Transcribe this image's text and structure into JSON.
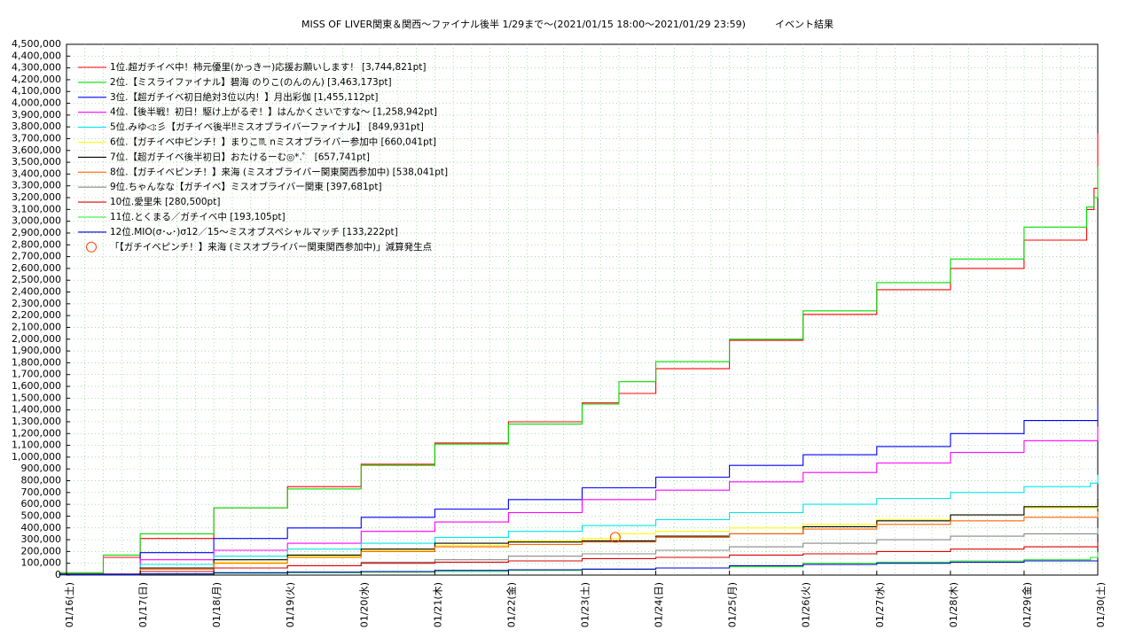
{
  "chart_data": {
    "type": "line",
    "title": "MISS OF LIVER関東＆関西〜ファイナル後半 1/29まで〜(2021/01/15 18:00〜2021/01/29 23:59)　　　イベント結果",
    "xlabel": "",
    "ylabel": "",
    "grid": true,
    "legend_position": "top-left",
    "ylim": [
      0,
      4500000
    ],
    "xlim": [
      0,
      14
    ],
    "x_tick_labels": [
      "01/16(土)",
      "01/17(日)",
      "01/18(月)",
      "01/19(火)",
      "01/20(水)",
      "01/21(木)",
      "01/22(金)",
      "01/23(土)",
      "01/24(日)",
      "01/25(月)",
      "01/26(火)",
      "01/27(水)",
      "01/28(木)",
      "01/29(金)",
      "01/30(土)"
    ],
    "y_tick_labels": [
      "0",
      "100,000",
      "200,000",
      "300,000",
      "400,000",
      "500,000",
      "600,000",
      "700,000",
      "800,000",
      "900,000",
      "1,000,000",
      "1,100,000",
      "1,200,000",
      "1,300,000",
      "1,400,000",
      "1,500,000",
      "1,600,000",
      "1,700,000",
      "1,800,000",
      "1,900,000",
      "2,000,000",
      "2,100,000",
      "2,200,000",
      "2,300,000",
      "2,400,000",
      "2,500,000",
      "2,600,000",
      "2,700,000",
      "2,800,000",
      "2,900,000",
      "3,000,000",
      "3,100,000",
      "3,200,000",
      "3,300,000",
      "3,400,000",
      "3,500,000",
      "3,600,000",
      "3,700,000",
      "3,800,000",
      "3,900,000",
      "4,000,000",
      "4,100,000",
      "4,200,000",
      "4,300,000",
      "4,400,000",
      "4,500,000"
    ],
    "series": [
      {
        "name": "1位.超ガチイベ中！柿元優里(かっきー)応援お願いします！ [3,744,821pt]",
        "color": "#ff0000",
        "x": [
          -0.1,
          0.5,
          1,
          2,
          3,
          4,
          5,
          6,
          7,
          7.5,
          8,
          9,
          10,
          11,
          12,
          13,
          13.85,
          13.95,
          14
        ],
        "y": [
          10000,
          150000,
          310000,
          570000,
          750000,
          940000,
          1120000,
          1300000,
          1460000,
          1540000,
          1750000,
          1990000,
          2210000,
          2420000,
          2600000,
          2840000,
          3100000,
          3280000,
          3744821
        ]
      },
      {
        "name": "2位.【ミスライファイナル】碧海 のりこ(のんのん) [3,463,173pt]",
        "color": "#00dd00",
        "x": [
          -0.1,
          0.5,
          1,
          2,
          3,
          4,
          5,
          6,
          7,
          7.5,
          8,
          9,
          10,
          11,
          12,
          13,
          13.85,
          13.95,
          14
        ],
        "y": [
          20000,
          170000,
          350000,
          570000,
          730000,
          930000,
          1110000,
          1280000,
          1450000,
          1640000,
          1810000,
          2000000,
          2240000,
          2480000,
          2680000,
          2950000,
          3120000,
          3200000,
          3463173
        ]
      },
      {
        "name": "3位.【超ガチイベ初日絶対3位以内！】月出彩伽 [1,455,112pt]",
        "color": "#0000ff",
        "x": [
          -0.1,
          1,
          2,
          3,
          4,
          5,
          6,
          7,
          8,
          9,
          10,
          11,
          12,
          13,
          14
        ],
        "y": [
          10000,
          190000,
          310000,
          400000,
          490000,
          560000,
          640000,
          740000,
          830000,
          930000,
          1020000,
          1090000,
          1200000,
          1310000,
          1455112
        ]
      },
      {
        "name": "4位.【後半戦！初日！駆け上がるぞ！】はんかくさいですな〜 [1,258,942pt]",
        "color": "#ff00ff",
        "x": [
          -0.1,
          1,
          2,
          3,
          4,
          5,
          6,
          7,
          8,
          9,
          10,
          11,
          12,
          13,
          14
        ],
        "y": [
          5000,
          130000,
          210000,
          270000,
          370000,
          450000,
          530000,
          640000,
          720000,
          790000,
          870000,
          950000,
          1040000,
          1140000,
          1258942
        ]
      },
      {
        "name": "5位.みゆ◁:彡【ガチイベ後半‼ミスオブライバーファイナル】 [849,931pt]",
        "color": "#00e5e5",
        "x": [
          -0.1,
          1,
          2,
          3,
          4,
          5,
          6,
          7,
          8,
          9,
          10,
          11,
          12,
          13,
          13.9,
          14
        ],
        "y": [
          5000,
          90000,
          160000,
          220000,
          270000,
          320000,
          370000,
          420000,
          470000,
          530000,
          600000,
          650000,
          700000,
          750000,
          780000,
          849931
        ]
      },
      {
        "name": "6位.【ガチイベ中ピンチ！】まりこ♏ nミスオブライバー参加中 [660,041pt]",
        "color": "#ffff00",
        "x": [
          -0.1,
          1,
          2,
          3,
          4,
          5,
          6,
          7,
          7.5,
          8,
          9,
          10,
          11,
          12,
          13,
          14
        ],
        "y": [
          5000,
          60000,
          110000,
          160000,
          210000,
          250000,
          290000,
          310000,
          350000,
          370000,
          400000,
          430000,
          470000,
          510000,
          570000,
          660041
        ]
      },
      {
        "name": "7位.【超ガチイベ後半初日】おたけるーむ◎*.゜ [657,741pt]",
        "color": "#000000",
        "x": [
          -0.1,
          1,
          2,
          3,
          4,
          5,
          6,
          7,
          8,
          9,
          10,
          11,
          12,
          13,
          14
        ],
        "y": [
          5000,
          60000,
          130000,
          170000,
          220000,
          270000,
          280000,
          290000,
          330000,
          350000,
          410000,
          460000,
          510000,
          580000,
          657741
        ]
      },
      {
        "name": "8位.【ガチイベピンチ！】来海 (ミスオブライバー関東関西参加中) [538,041pt]",
        "color": "#ff6600",
        "x": [
          -0.1,
          1,
          2,
          3,
          4,
          5,
          6,
          7,
          8,
          9,
          10,
          11,
          12,
          13,
          14
        ],
        "y": [
          5000,
          50000,
          100000,
          150000,
          200000,
          240000,
          260000,
          280000,
          320000,
          350000,
          390000,
          430000,
          460000,
          490000,
          538041
        ]
      },
      {
        "name": "9位.ちゃんなな【ガチイベ】ミスオブライバー関東 [397,681pt]",
        "color": "#888888",
        "x": [
          -0.1,
          1,
          2,
          3,
          4,
          5,
          6,
          7,
          8,
          9,
          10,
          11,
          12,
          13,
          14
        ],
        "y": [
          5000,
          30000,
          60000,
          80000,
          110000,
          130000,
          160000,
          180000,
          210000,
          240000,
          270000,
          300000,
          330000,
          350000,
          397681
        ]
      },
      {
        "name": "10位.愛里朱 [280,500pt]",
        "color": "#dd0000",
        "x": [
          -0.1,
          1,
          2,
          3,
          4,
          5,
          6,
          7,
          8,
          9,
          10,
          11,
          12,
          13,
          14
        ],
        "y": [
          5000,
          30000,
          60000,
          80000,
          100000,
          110000,
          120000,
          140000,
          150000,
          170000,
          180000,
          200000,
          220000,
          240000,
          280500
        ]
      },
      {
        "name": "11位.とくまる／ガチイベ中 [193,105pt]",
        "color": "#22ee22",
        "x": [
          -0.1,
          1,
          2,
          3,
          4,
          5,
          6,
          7,
          8,
          9,
          10,
          11,
          12,
          13,
          13.9,
          14
        ],
        "y": [
          2000,
          10000,
          15000,
          20000,
          25000,
          30000,
          40000,
          50000,
          60000,
          70000,
          100000,
          110000,
          120000,
          130000,
          150000,
          193105
        ]
      },
      {
        "name": "12位.MIO(σ･ᴗ･)σ12／15〜ミスオブスペシャルマッチ [133,222pt]",
        "color": "#0000cc",
        "x": [
          -0.1,
          1,
          2,
          3,
          4,
          5,
          6,
          7,
          8,
          9,
          10,
          11,
          12,
          13,
          14
        ],
        "y": [
          2000,
          10000,
          20000,
          25000,
          30000,
          40000,
          45000,
          50000,
          60000,
          80000,
          90000,
          100000,
          110000,
          120000,
          133222
        ]
      }
    ],
    "annotation": {
      "label": "「【ガチイベピンチ！】来海 (ミスオブライバー関東関西参加中)」減算発生点",
      "color": "#ff4400",
      "x": 7.45,
      "y": 320000
    }
  }
}
